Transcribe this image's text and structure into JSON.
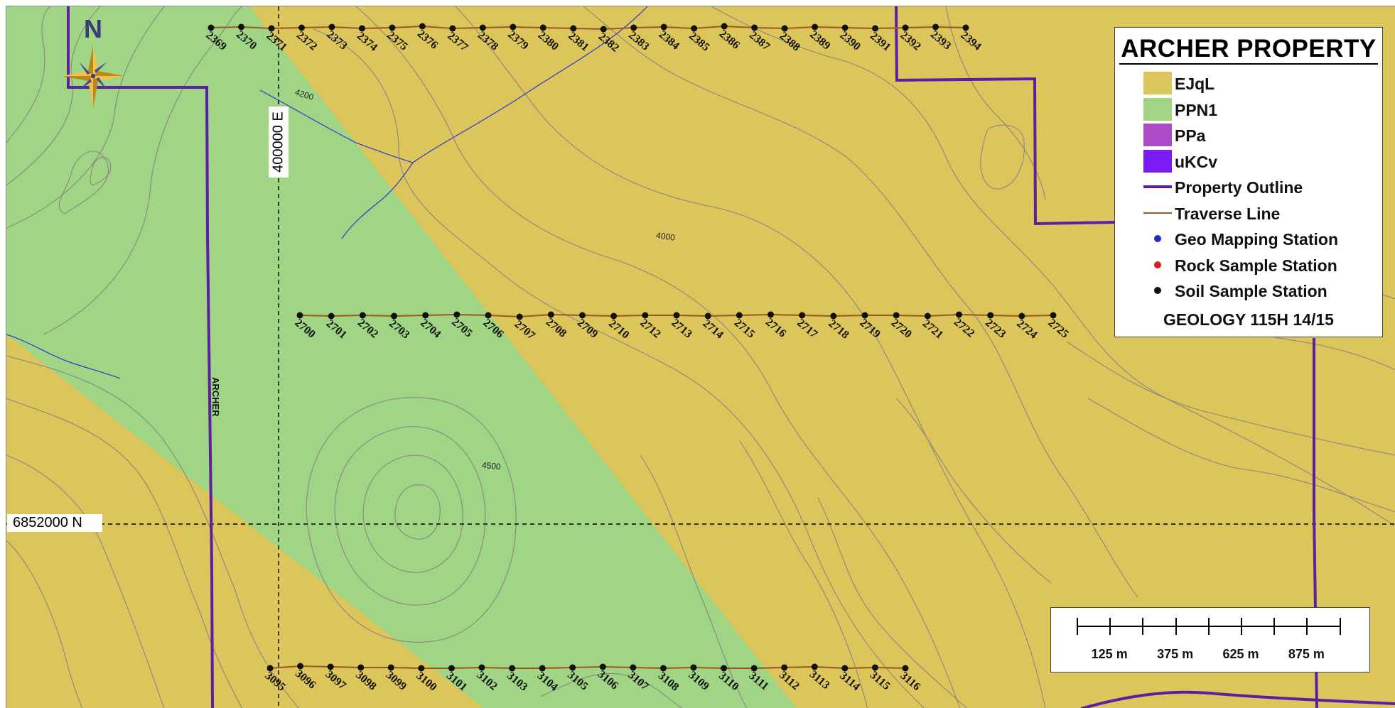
{
  "legend": {
    "title": "ARCHER PROPERTY",
    "items": [
      {
        "label": "EJqL",
        "kind": "polygon",
        "color": "#dcc55a"
      },
      {
        "label": "PPN1",
        "kind": "polygon",
        "color": "#a0d585"
      },
      {
        "label": "PPa",
        "kind": "polygon",
        "color": "#ad4cc6"
      },
      {
        "label": "uKCv",
        "kind": "polygon",
        "color": "#7a1af5"
      },
      {
        "label": "Property Outline",
        "kind": "line",
        "color": "#5b1fa3"
      },
      {
        "label": "Traverse Line",
        "kind": "thin-line",
        "color": "#9a5a1e"
      },
      {
        "label": "Geo Mapping Station",
        "kind": "dot",
        "color": "#1c2ad0"
      },
      {
        "label": "Rock Sample Station",
        "kind": "dot",
        "color": "#d4201c"
      },
      {
        "label": "Soil Sample Station",
        "kind": "dot",
        "color": "#111111"
      }
    ],
    "footer": "GEOLOGY 115H 14/15"
  },
  "north_arrow": {
    "label": "N",
    "icon": "compass-rose-icon"
  },
  "grid_labels": {
    "northing": "6852000 N",
    "easting": "400000 E"
  },
  "contour_labels": [
    "4200",
    "4000",
    "4500"
  ],
  "property_label": "ARCHER",
  "scale_bar": {
    "labels": [
      "125 m",
      "375 m",
      "625 m",
      "875 m"
    ]
  },
  "colors": {
    "background_unit": "#dcc55a",
    "band_unit": "#a0d585",
    "contour": "#8a8780",
    "stream": "#2a3ad0",
    "property_outline": "#5b1fa3",
    "traverse": "#9a5a1e",
    "station": "#111111"
  },
  "traverses": [
    {
      "name": "top",
      "stations": [
        "2369",
        "2370",
        "2371",
        "2372",
        "2373",
        "2374",
        "2375",
        "2376",
        "2377",
        "2378",
        "2379",
        "2380",
        "2381",
        "2382",
        "2383",
        "2384",
        "2385",
        "2386",
        "2387",
        "2388",
        "2389",
        "2390",
        "2391",
        "2392",
        "2393",
        "2394"
      ]
    },
    {
      "name": "middle",
      "stations": [
        "2700",
        "2701",
        "2702",
        "2703",
        "2704",
        "2705",
        "2706",
        "2707",
        "2708",
        "2709",
        "2710",
        "2712",
        "2713",
        "2714",
        "2715",
        "2716",
        "2717",
        "2718",
        "2719",
        "2720",
        "2721",
        "2722",
        "2723",
        "2724",
        "2725"
      ]
    },
    {
      "name": "bottom",
      "stations": [
        "3095",
        "3096",
        "3097",
        "3098",
        "3099",
        "3100",
        "3101",
        "3102",
        "3103",
        "3104",
        "3105",
        "3106",
        "3107",
        "3108",
        "3109",
        "3110",
        "3111",
        "3112",
        "3113",
        "3114",
        "3115",
        "3116"
      ]
    }
  ]
}
